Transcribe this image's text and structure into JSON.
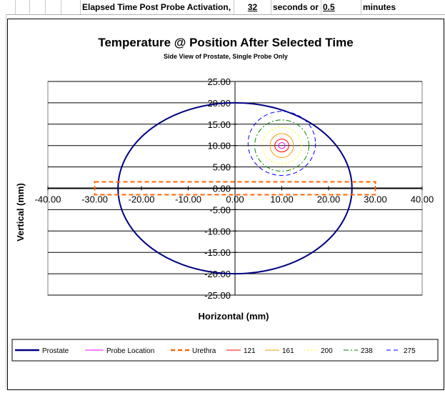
{
  "sheet": {
    "label": "Elapsed Time Post Probe Activation,",
    "seconds_value": "32",
    "seconds_unit": "seconds or",
    "minutes_value": "0.5",
    "minutes_unit": "minutes"
  },
  "colors": {
    "prostate": "#000080",
    "probe": "#ff00ff",
    "urethra": "#ff6600",
    "c121": "#ff0000",
    "c161": "#ff9900",
    "c200": "#ffff00",
    "c238": "#008000",
    "c275": "#0000ff"
  },
  "chart_data": {
    "type": "line",
    "title": "Temperature @ Position After Selected Time",
    "subtitle": "Side View of Prostate, Single Probe Only",
    "xlabel": "Horizontal (mm)",
    "ylabel": "Vertical (mm)",
    "xlim": [
      -40,
      40
    ],
    "ylim": [
      -25,
      25
    ],
    "x_ticks": [
      -40,
      -30,
      -20,
      -10,
      0,
      10,
      20,
      30,
      40
    ],
    "x_tick_labels": [
      "-40.00",
      "-30.00",
      "-20.00",
      "-10.00",
      "0.00",
      "10.00",
      "20.00",
      "30.00",
      "40.00"
    ],
    "y_ticks": [
      25,
      20,
      15,
      10,
      5,
      0,
      -5,
      -10,
      -15,
      -20,
      -25
    ],
    "y_tick_labels": [
      "25.00",
      "20.00",
      "15.00",
      "10.00",
      "5.00",
      "0.00",
      "-5.00",
      "-10.00",
      "-15.00",
      "-20.00",
      "-25.00"
    ],
    "grid": true,
    "legend_position": "bottom",
    "series": [
      {
        "name": "Prostate",
        "shape": "ellipse",
        "center": [
          0,
          0
        ],
        "radius": [
          25,
          20
        ],
        "color_key": "prostate",
        "dash": "solid"
      },
      {
        "name": "Probe Location",
        "shape": "ellipse",
        "center": [
          10,
          10
        ],
        "radius": [
          0.7,
          0.7
        ],
        "color_key": "probe",
        "dash": "solid"
      },
      {
        "name": "Urethra",
        "shape": "rect",
        "x": [
          -30,
          30
        ],
        "y": [
          -1.5,
          1.5
        ],
        "color_key": "urethra",
        "dash": "dashed"
      },
      {
        "name": "121",
        "shape": "ellipse",
        "center": [
          10,
          10
        ],
        "radius": [
          1.5,
          1.5
        ],
        "color_key": "c121",
        "dash": "solid"
      },
      {
        "name": "161",
        "shape": "ellipse",
        "center": [
          10,
          10
        ],
        "radius": [
          2.5,
          2.8
        ],
        "color_key": "c161",
        "dash": "solid"
      },
      {
        "name": "200",
        "shape": "ellipse",
        "center": [
          10,
          10
        ],
        "radius": [
          4.2,
          4.3
        ],
        "color_key": "c200",
        "dash": "dotted"
      },
      {
        "name": "238",
        "shape": "ellipse",
        "center": [
          10,
          10
        ],
        "radius": [
          5.8,
          6.0
        ],
        "color_key": "c238",
        "dash": "dashdot"
      },
      {
        "name": "275",
        "shape": "ellipse",
        "center": [
          10,
          10.5
        ],
        "radius": [
          7.2,
          7.5
        ],
        "color_key": "c275",
        "dash": "dashed"
      }
    ]
  }
}
